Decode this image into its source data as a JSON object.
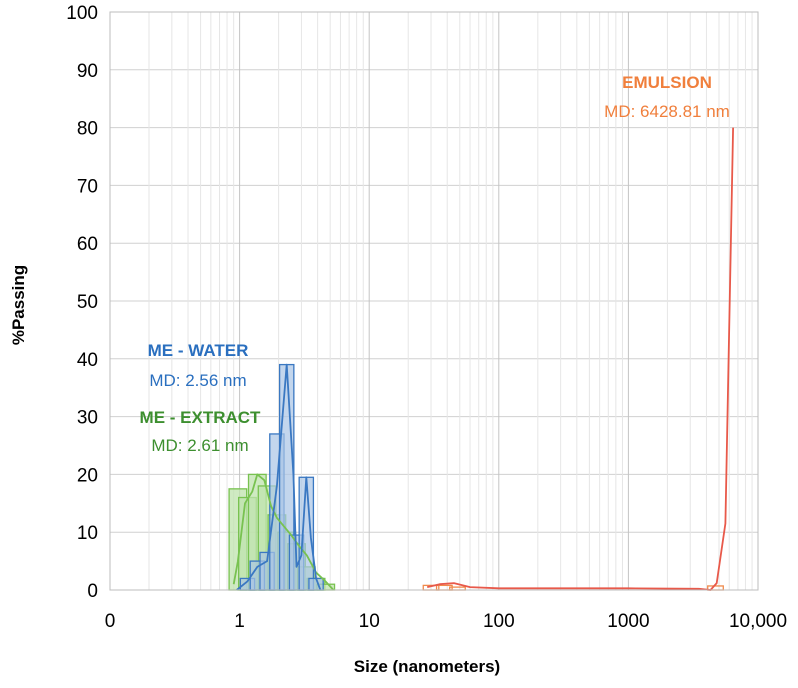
{
  "chart_data": {
    "type": "bar",
    "title": "",
    "xlabel": "Size (nanometers)",
    "ylabel": "%Passing",
    "x_scale": "log",
    "xlim": [
      0.1,
      10000
    ],
    "ylim": [
      0,
      100
    ],
    "x_tick_labels": [
      {
        "value": 0.1,
        "label": "0"
      },
      {
        "value": 1,
        "label": "1"
      },
      {
        "value": 10,
        "label": "10"
      },
      {
        "value": 100,
        "label": "100"
      },
      {
        "value": 1000,
        "label": "1000"
      },
      {
        "value": 10000,
        "label": "10,000"
      }
    ],
    "y_ticks": [
      0,
      10,
      20,
      30,
      40,
      50,
      60,
      70,
      80,
      90,
      100
    ],
    "grid": true,
    "colors": {
      "water": "#3a78c2",
      "water_fill": "#a9c4e6",
      "extract": "#78c250",
      "extract_fill": "#bfe3ad",
      "emulsion": "#e8594a",
      "emulsion_bar": "#f08a4b",
      "label_water": "#2a6fbf",
      "label_extract": "#3d8f2f",
      "label_emulsion": "#f07f3c",
      "grid": "#d0d0d0"
    },
    "annotations": {
      "water_title": "ME - WATER",
      "water_md": "MD: 2.56 nm",
      "extract_title": "ME - EXTRACT",
      "extract_md": "MD: 2.61 nm",
      "emulsion_title": "EMULSION",
      "emulsion_md": "MD: 6428.81 nm"
    },
    "series": [
      {
        "key": "extract",
        "bars": [
          {
            "x": 0.97,
            "y": 17.5
          },
          {
            "x": 1.15,
            "y": 16.0
          },
          {
            "x": 1.37,
            "y": 20.0
          },
          {
            "x": 1.63,
            "y": 18.0
          },
          {
            "x": 1.94,
            "y": 13.0
          },
          {
            "x": 2.31,
            "y": 10.0
          },
          {
            "x": 2.75,
            "y": 8.0
          },
          {
            "x": 3.27,
            "y": 4.0
          },
          {
            "x": 3.89,
            "y": 2.0
          },
          {
            "x": 4.62,
            "y": 1.0
          }
        ],
        "line": [
          {
            "x": 0.9,
            "y": 1.0
          },
          {
            "x": 0.97,
            "y": 5.0
          },
          {
            "x": 1.1,
            "y": 15.0
          },
          {
            "x": 1.25,
            "y": 17.0
          },
          {
            "x": 1.37,
            "y": 20.0
          },
          {
            "x": 1.55,
            "y": 19.0
          },
          {
            "x": 1.75,
            "y": 14.5
          },
          {
            "x": 1.94,
            "y": 12.5
          },
          {
            "x": 2.2,
            "y": 11.0
          },
          {
            "x": 2.5,
            "y": 9.5
          },
          {
            "x": 2.9,
            "y": 7.5
          },
          {
            "x": 3.3,
            "y": 6.0
          },
          {
            "x": 3.9,
            "y": 3.0
          },
          {
            "x": 4.6,
            "y": 1.5
          },
          {
            "x": 5.3,
            "y": 0.0
          }
        ]
      },
      {
        "key": "water",
        "bars": [
          {
            "x": 1.15,
            "y": 2.0
          },
          {
            "x": 1.37,
            "y": 5.0
          },
          {
            "x": 1.63,
            "y": 6.5
          },
          {
            "x": 1.94,
            "y": 27.0
          },
          {
            "x": 2.31,
            "y": 39.0
          },
          {
            "x": 2.75,
            "y": 9.5
          },
          {
            "x": 3.27,
            "y": 19.5
          },
          {
            "x": 3.89,
            "y": 2.0
          }
        ],
        "line": [
          {
            "x": 0.95,
            "y": 0.0
          },
          {
            "x": 1.15,
            "y": 1.5
          },
          {
            "x": 1.37,
            "y": 4.0
          },
          {
            "x": 1.63,
            "y": 5.0
          },
          {
            "x": 1.94,
            "y": 18.0
          },
          {
            "x": 2.31,
            "y": 39.0
          },
          {
            "x": 2.6,
            "y": 20.0
          },
          {
            "x": 2.75,
            "y": 4.0
          },
          {
            "x": 3.0,
            "y": 6.0
          },
          {
            "x": 3.27,
            "y": 19.5
          },
          {
            "x": 3.55,
            "y": 9.0
          },
          {
            "x": 3.89,
            "y": 2.0
          },
          {
            "x": 4.2,
            "y": 0.0
          }
        ]
      },
      {
        "key": "emulsion",
        "bars": [
          {
            "x": 30,
            "y": 0.8
          },
          {
            "x": 38,
            "y": 0.8
          },
          {
            "x": 48,
            "y": 0.5
          },
          {
            "x": 4700,
            "y": 0.7
          }
        ],
        "line": [
          {
            "x": 28,
            "y": 0.5
          },
          {
            "x": 35,
            "y": 1.0
          },
          {
            "x": 45,
            "y": 1.2
          },
          {
            "x": 60,
            "y": 0.5
          },
          {
            "x": 100,
            "y": 0.3
          },
          {
            "x": 1000,
            "y": 0.3
          },
          {
            "x": 3500,
            "y": 0.2
          },
          {
            "x": 4300,
            "y": 0.0
          },
          {
            "x": 4800,
            "y": 1.2
          },
          {
            "x": 5600,
            "y": 11.5
          },
          {
            "x": 6430,
            "y": 80.0
          }
        ]
      }
    ]
  }
}
